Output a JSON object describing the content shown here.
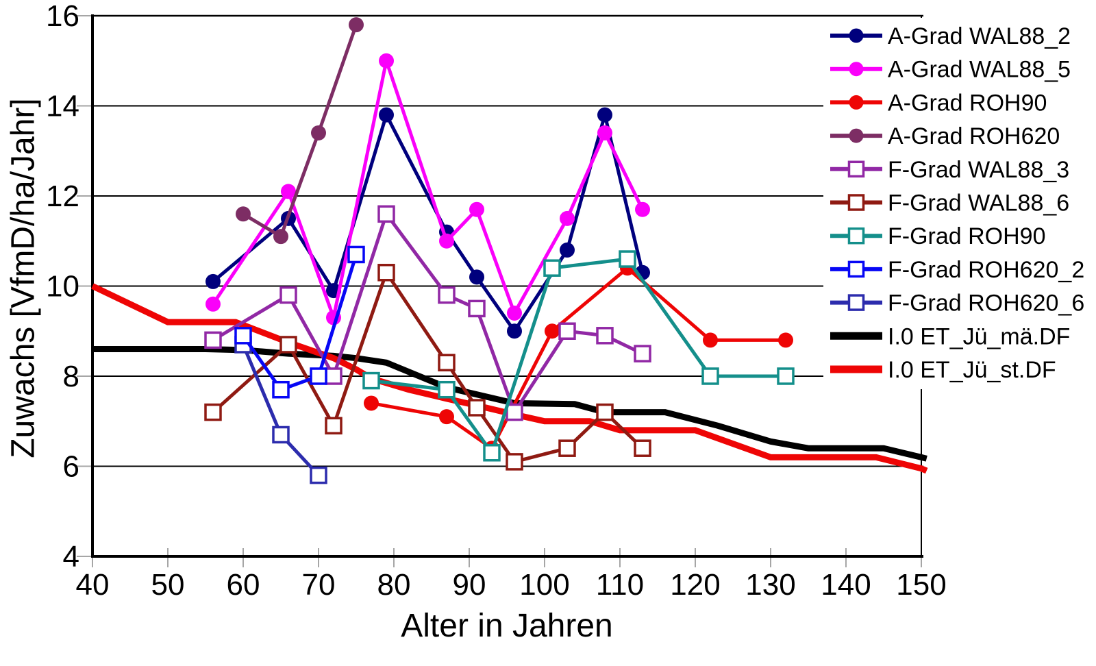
{
  "chart_data": {
    "type": "line",
    "title": "",
    "xlabel": "Alter in Jahren",
    "ylabel": "Zuwachs [VfmD/ha/Jahr]",
    "xlim": [
      40,
      150
    ],
    "ylim": [
      4,
      16
    ],
    "x_ticks": [
      40,
      50,
      60,
      70,
      80,
      90,
      100,
      110,
      120,
      130,
      140,
      150
    ],
    "y_ticks": [
      4,
      6,
      8,
      10,
      12,
      14,
      16
    ],
    "grid": "horizontal",
    "legend_position": "top-right",
    "colors": {
      "gridline": "#000000",
      "tick": "#a6a6a6",
      "axis": "#000000",
      "background": "#ffffff"
    },
    "series": [
      {
        "name": "A-Grad WAL88_2",
        "color": "#00007D",
        "marker": "circle",
        "line_width": 5,
        "points": [
          [
            56,
            10.1
          ],
          [
            66,
            11.5
          ],
          [
            72,
            9.9
          ],
          [
            79,
            13.8
          ],
          [
            87,
            11.2
          ],
          [
            91,
            10.2
          ],
          [
            96,
            9.0
          ],
          [
            103,
            10.8
          ],
          [
            108,
            13.8
          ],
          [
            113,
            10.3
          ]
        ]
      },
      {
        "name": "A-Grad WAL88_5",
        "color": "#FA00FA",
        "marker": "circle",
        "line_width": 5,
        "points": [
          [
            56,
            9.6
          ],
          [
            66,
            12.1
          ],
          [
            72,
            9.3
          ],
          [
            79,
            15.0
          ],
          [
            87,
            11.0
          ],
          [
            91,
            11.7
          ],
          [
            96,
            9.4
          ],
          [
            103,
            11.5
          ],
          [
            108,
            13.4
          ],
          [
            113,
            11.7
          ]
        ]
      },
      {
        "name": "A-Grad ROH90",
        "color": "#EE0505",
        "marker": "circle",
        "line_width": 5,
        "points": [
          [
            77,
            7.4
          ],
          [
            87,
            7.1
          ],
          [
            93,
            6.4
          ],
          [
            101,
            9.0
          ],
          [
            111,
            10.4
          ],
          [
            122,
            8.8
          ],
          [
            132,
            8.8
          ]
        ]
      },
      {
        "name": "A-Grad ROH620",
        "color": "#7D2D64",
        "marker": "circle",
        "line_width": 5,
        "points": [
          [
            60,
            11.6
          ],
          [
            65,
            11.1
          ],
          [
            70,
            13.4
          ],
          [
            75,
            15.8
          ]
        ]
      },
      {
        "name": "F-Grad WAL88_3",
        "color": "#9128A5",
        "marker": "square",
        "line_width": 5,
        "points": [
          [
            56,
            8.8
          ],
          [
            66,
            9.8
          ],
          [
            72,
            8.0
          ],
          [
            79,
            11.6
          ],
          [
            87,
            9.8
          ],
          [
            91,
            9.5
          ],
          [
            96,
            7.2
          ],
          [
            103,
            9.0
          ],
          [
            108,
            8.9
          ],
          [
            113,
            8.5
          ]
        ]
      },
      {
        "name": "F-Grad WAL88_6",
        "color": "#8F1A12",
        "marker": "square",
        "line_width": 5,
        "points": [
          [
            56,
            7.2
          ],
          [
            66,
            8.7
          ],
          [
            72,
            6.9
          ],
          [
            79,
            10.3
          ],
          [
            87,
            8.3
          ],
          [
            91,
            7.3
          ],
          [
            96,
            6.1
          ],
          [
            103,
            6.4
          ],
          [
            108,
            7.2
          ],
          [
            113,
            6.4
          ]
        ]
      },
      {
        "name": "F-Grad ROH90",
        "color": "#148F8B",
        "marker": "square",
        "line_width": 5,
        "points": [
          [
            77,
            7.9
          ],
          [
            87,
            7.7
          ],
          [
            93,
            6.3
          ],
          [
            101,
            10.4
          ],
          [
            111,
            10.6
          ],
          [
            122,
            8.0
          ],
          [
            132,
            8.0
          ]
        ]
      },
      {
        "name": "F-Grad ROH620_2",
        "color": "#0707F5",
        "marker": "square",
        "line_width": 5,
        "points": [
          [
            60,
            8.9
          ],
          [
            65,
            7.7
          ],
          [
            70,
            8.0
          ],
          [
            75,
            10.7
          ]
        ]
      },
      {
        "name": "F-Grad ROH620_6",
        "color": "#2C2CAD",
        "marker": "square",
        "line_width": 5,
        "points": [
          [
            60,
            8.7
          ],
          [
            65,
            6.7
          ],
          [
            70,
            5.8
          ]
        ]
      },
      {
        "name": "I.0 ET_Jü_mä.DF",
        "color": "#000000",
        "marker": "none",
        "line_width": 9,
        "points": [
          [
            40,
            8.6
          ],
          [
            55,
            8.6
          ],
          [
            60,
            8.58
          ],
          [
            66,
            8.5
          ],
          [
            72,
            8.45
          ],
          [
            75,
            8.4
          ],
          [
            79,
            8.3
          ],
          [
            87,
            7.75
          ],
          [
            96,
            7.4
          ],
          [
            104,
            7.38
          ],
          [
            108,
            7.2
          ],
          [
            116,
            7.2
          ],
          [
            123,
            6.9
          ],
          [
            130,
            6.55
          ],
          [
            135,
            6.4
          ],
          [
            145,
            6.4
          ],
          [
            150,
            6.2
          ],
          [
            150.7,
            6.17
          ]
        ]
      },
      {
        "name": "I.0 ET_Jü_st.DF",
        "color": "#EE0505",
        "marker": "none",
        "line_width": 9,
        "points": [
          [
            40,
            10.0
          ],
          [
            50,
            9.2
          ],
          [
            59,
            9.2
          ],
          [
            66,
            8.75
          ],
          [
            72,
            8.4
          ],
          [
            75,
            8.15
          ],
          [
            77,
            7.95
          ],
          [
            82,
            7.7
          ],
          [
            87,
            7.5
          ],
          [
            91,
            7.35
          ],
          [
            96,
            7.15
          ],
          [
            100,
            7.0
          ],
          [
            106,
            7.0
          ],
          [
            110,
            6.8
          ],
          [
            120,
            6.8
          ],
          [
            130,
            6.2
          ],
          [
            144,
            6.2
          ],
          [
            150,
            5.95
          ],
          [
            150.7,
            5.9
          ]
        ]
      }
    ]
  }
}
